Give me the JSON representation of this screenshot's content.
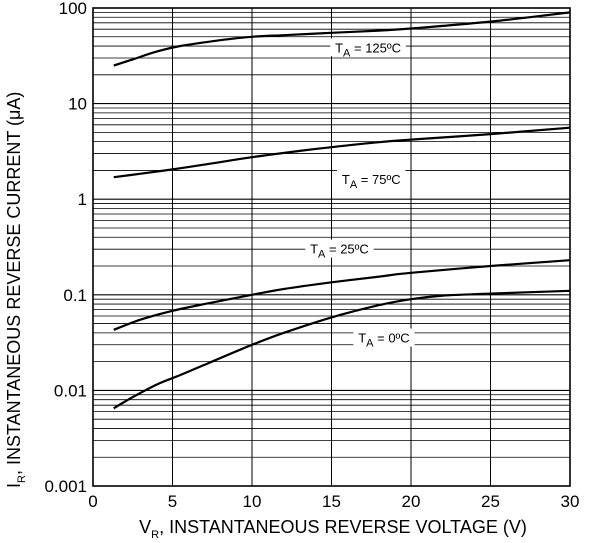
{
  "chart_data": {
    "type": "line",
    "xlabel": {
      "main": "V",
      "sub": "R",
      "rest": ", INSTANTANEOUS REVERSE VOLTAGE (V)"
    },
    "ylabel": {
      "main": "I",
      "sub": "R",
      "rest": ", INSTANTANEOUS REVERSE CURRENT (μA)"
    },
    "xlim": [
      0,
      30
    ],
    "ylim": [
      0.001,
      100
    ],
    "yscale": "log",
    "grid": true,
    "x_ticks": [
      {
        "value": 0,
        "label": "0"
      },
      {
        "value": 5,
        "label": "5"
      },
      {
        "value": 10,
        "label": "10"
      },
      {
        "value": 15,
        "label": "15"
      },
      {
        "value": 20,
        "label": "20"
      },
      {
        "value": 25,
        "label": "25"
      },
      {
        "value": 30,
        "label": "30"
      }
    ],
    "y_ticks": [
      {
        "value": 100,
        "label": "100"
      },
      {
        "value": 10,
        "label": "10"
      },
      {
        "value": 1,
        "label": "1"
      },
      {
        "value": 0.1,
        "label": "0.1"
      },
      {
        "value": 0.01,
        "label": "0.01"
      },
      {
        "value": 0.001,
        "label": "0.001"
      }
    ],
    "series": [
      {
        "name": "T_A = 125°C",
        "label": {
          "main": "T",
          "sub": "A",
          "rest": " = 125ºC",
          "x": 17.3,
          "y": 37
        },
        "x": [
          1.3,
          2.5,
          4,
          5.5,
          8,
          10,
          12,
          15,
          18,
          20,
          22,
          25,
          28,
          30
        ],
        "y": [
          25,
          29,
          35,
          40,
          46,
          50,
          52,
          55,
          58,
          61,
          65,
          72,
          82,
          90
        ]
      },
      {
        "name": "T_A = 75°C",
        "label": {
          "main": "T",
          "sub": "A",
          "rest": " = 75ºC",
          "x": 17.5,
          "y": 1.55
        },
        "x": [
          1.3,
          3,
          5,
          7,
          10,
          13,
          15,
          18,
          20,
          25,
          30
        ],
        "y": [
          1.7,
          1.85,
          2.05,
          2.3,
          2.75,
          3.2,
          3.5,
          3.95,
          4.2,
          4.8,
          5.6
        ]
      },
      {
        "name": "T_A = 25°C",
        "label": {
          "main": "T",
          "sub": "A",
          "rest": " = 25ºC",
          "x": 15.5,
          "y": 0.29
        },
        "x": [
          1.3,
          3,
          5,
          7,
          10,
          12,
          15,
          18,
          20,
          25,
          30
        ],
        "y": [
          0.043,
          0.055,
          0.068,
          0.08,
          0.1,
          0.115,
          0.135,
          0.155,
          0.17,
          0.2,
          0.23
        ]
      },
      {
        "name": "T_A = 0°C",
        "label": {
          "main": "T",
          "sub": "A",
          "rest": " = 0ºC",
          "x": 18.3,
          "y": 0.034
        },
        "x": [
          1.3,
          2.5,
          4,
          5.5,
          7,
          10,
          12,
          15,
          18,
          20,
          22,
          25,
          30
        ],
        "y": [
          0.0065,
          0.0085,
          0.0115,
          0.0145,
          0.0185,
          0.03,
          0.04,
          0.058,
          0.078,
          0.09,
          0.098,
          0.103,
          0.11
        ]
      }
    ]
  }
}
